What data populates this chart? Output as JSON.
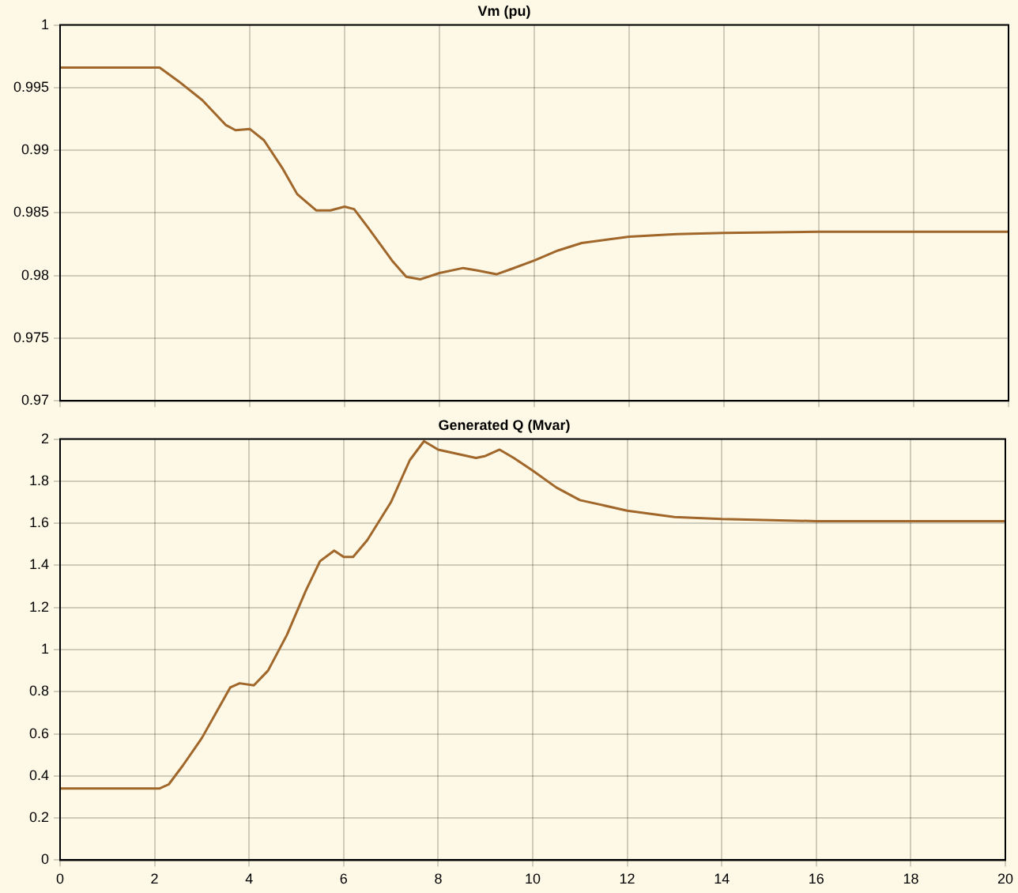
{
  "chart_data": [
    {
      "type": "line",
      "title": "Vm (pu)",
      "grid": true,
      "tick_labels": "y",
      "xlim": [
        0,
        20
      ],
      "xticks": [
        0,
        2,
        4,
        6,
        8,
        10,
        12,
        14,
        16,
        18,
        20
      ],
      "ylim": [
        0.97,
        1
      ],
      "yticks": [
        0.97,
        0.975,
        0.98,
        0.985,
        0.99,
        0.995,
        1
      ],
      "series": [
        {
          "color": "#a0662a",
          "x": [
            0,
            2.1,
            2.5,
            3,
            3.5,
            3.7,
            4,
            4.3,
            4.7,
            5,
            5.4,
            5.7,
            6,
            6.2,
            6.5,
            7,
            7.3,
            7.6,
            8,
            8.5,
            8.8,
            9.2,
            9.5,
            10,
            10.5,
            11,
            12,
            13,
            14,
            16,
            18,
            20
          ],
          "values": [
            0.9966,
            0.9966,
            0.9955,
            0.994,
            0.992,
            0.9916,
            0.9917,
            0.9908,
            0.9885,
            0.9865,
            0.9852,
            0.9852,
            0.9855,
            0.9853,
            0.9838,
            0.9812,
            0.9799,
            0.9797,
            0.9802,
            0.9806,
            0.9804,
            0.9801,
            0.9805,
            0.9812,
            0.982,
            0.9826,
            0.9831,
            0.9833,
            0.9834,
            0.9835,
            0.9835,
            0.9835
          ]
        }
      ]
    },
    {
      "type": "line",
      "title": "Generated Q (Mvar)",
      "grid": true,
      "xlim": [
        0,
        20
      ],
      "xticks": [
        0,
        2,
        4,
        6,
        8,
        10,
        12,
        14,
        16,
        18,
        20
      ],
      "ylim": [
        0,
        2
      ],
      "yticks": [
        0,
        0.2,
        0.4,
        0.6,
        0.8,
        1,
        1.2,
        1.4,
        1.6,
        1.8,
        2
      ],
      "series": [
        {
          "color": "#a0662a",
          "x": [
            0,
            2.1,
            2.3,
            2.6,
            3,
            3.3,
            3.6,
            3.8,
            4.1,
            4.4,
            4.8,
            5.2,
            5.5,
            5.8,
            6,
            6.2,
            6.5,
            7,
            7.4,
            7.7,
            8,
            8.4,
            8.8,
            9,
            9.3,
            9.6,
            10,
            10.5,
            11,
            12,
            13,
            14,
            16,
            18,
            20
          ],
          "values": [
            0.34,
            0.34,
            0.36,
            0.45,
            0.58,
            0.7,
            0.82,
            0.84,
            0.83,
            0.9,
            1.07,
            1.28,
            1.42,
            1.47,
            1.44,
            1.44,
            1.52,
            1.7,
            1.9,
            1.99,
            1.95,
            1.93,
            1.91,
            1.92,
            1.95,
            1.91,
            1.85,
            1.77,
            1.71,
            1.66,
            1.63,
            1.62,
            1.61,
            1.61,
            1.61
          ]
        }
      ]
    }
  ]
}
